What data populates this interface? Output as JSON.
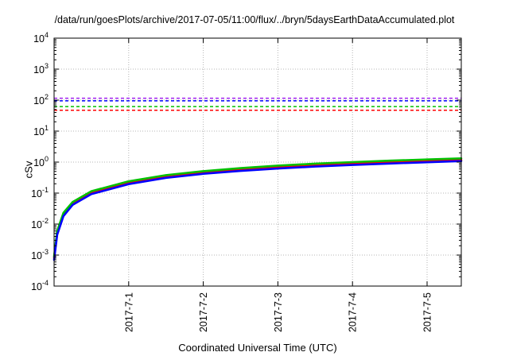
{
  "chart_data": {
    "type": "line",
    "title": "/data/run/goesPlots/archive/2017-07-05/11:00/flux/../bryn/5daysEarthDataAccumulated.plot",
    "xlabel": "Coordinated Universal Time (UTC)",
    "ylabel": "cSv",
    "x_axis": {
      "type": "date",
      "range": [
        "2017-06-30T00:00",
        "2017-07-05T11:00"
      ],
      "ticks": [
        "2017-7-1",
        "2017-7-2",
        "2017-7-3",
        "2017-7-4",
        "2017-7-5"
      ],
      "tick_label_rotation": "vertical"
    },
    "y_axis": {
      "scale": "log",
      "range": [
        0.0001,
        10000
      ],
      "ticks": [
        {
          "base": "10",
          "exp": "-4"
        },
        {
          "base": "10",
          "exp": "-3"
        },
        {
          "base": "10",
          "exp": "-2"
        },
        {
          "base": "10",
          "exp": "-1"
        },
        {
          "base": "10",
          "exp": "0"
        },
        {
          "base": "10",
          "exp": "1"
        },
        {
          "base": "10",
          "exp": "2"
        },
        {
          "base": "10",
          "exp": "3"
        },
        {
          "base": "10",
          "exp": "4"
        }
      ]
    },
    "grid": true,
    "legend": "none",
    "threshold_lines": [
      {
        "value": 115,
        "color": "#a020f0",
        "style": "dashed"
      },
      {
        "value": 95,
        "color": "#0000ff",
        "style": "dashed"
      },
      {
        "value": 62,
        "color": "#00c000",
        "style": "dashed"
      },
      {
        "value": 47,
        "color": "#ff0000",
        "style": "dashed"
      }
    ],
    "series": [
      {
        "color": "#ff0000",
        "x": [
          "2017-06-30T00:00",
          "2017-06-30T01:00",
          "2017-06-30T03:00",
          "2017-06-30T06:00",
          "2017-06-30T12:00",
          "2017-07-01T00:00",
          "2017-07-01T12:00",
          "2017-07-02T00:00",
          "2017-07-02T12:00",
          "2017-07-03T00:00",
          "2017-07-03T12:00",
          "2017-07-04T00:00",
          "2017-07-04T12:00",
          "2017-07-05T00:00",
          "2017-07-05T11:00"
        ],
        "y": [
          0.0008,
          0.005,
          0.02,
          0.045,
          0.1,
          0.21,
          0.33,
          0.45,
          0.56,
          0.67,
          0.78,
          0.88,
          0.98,
          1.08,
          1.17
        ]
      },
      {
        "color": "#00c000",
        "x": [
          "2017-06-30T00:00",
          "2017-06-30T01:00",
          "2017-06-30T03:00",
          "2017-06-30T06:00",
          "2017-06-30T12:00",
          "2017-07-01T00:00",
          "2017-07-01T12:00",
          "2017-07-02T00:00",
          "2017-07-02T12:00",
          "2017-07-03T00:00",
          "2017-07-03T12:00",
          "2017-07-04T00:00",
          "2017-07-04T12:00",
          "2017-07-05T00:00",
          "2017-07-05T11:00"
        ],
        "y": [
          0.0009,
          0.006,
          0.023,
          0.052,
          0.115,
          0.24,
          0.38,
          0.51,
          0.64,
          0.77,
          0.89,
          1.0,
          1.11,
          1.22,
          1.32
        ]
      },
      {
        "color": "#0000ff",
        "x": [
          "2017-06-30T00:00",
          "2017-06-30T01:00",
          "2017-06-30T03:00",
          "2017-06-30T06:00",
          "2017-06-30T12:00",
          "2017-07-01T00:00",
          "2017-07-01T12:00",
          "2017-07-02T00:00",
          "2017-07-02T12:00",
          "2017-07-03T00:00",
          "2017-07-03T12:00",
          "2017-07-04T00:00",
          "2017-07-04T12:00",
          "2017-07-05T00:00",
          "2017-07-05T11:00"
        ],
        "y": [
          0.0007,
          0.0045,
          0.018,
          0.042,
          0.093,
          0.195,
          0.31,
          0.42,
          0.52,
          0.62,
          0.72,
          0.81,
          0.9,
          0.99,
          1.08
        ]
      }
    ]
  }
}
